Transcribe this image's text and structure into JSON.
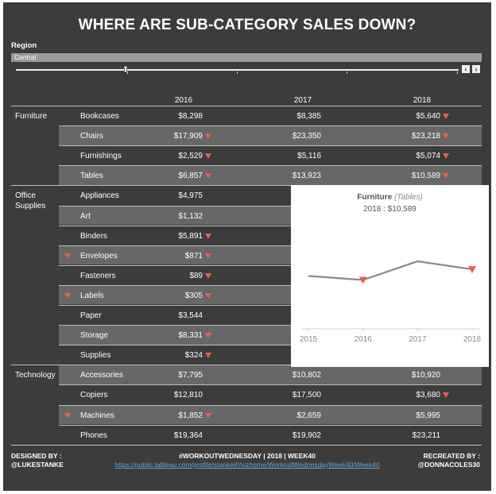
{
  "title": "WHERE ARE SUB-CATEGORY SALES DOWN?",
  "filter": {
    "label": "Region",
    "value": "Central",
    "prev_icon": "chevron-left-icon",
    "next_icon": "chevron-right-icon",
    "prev_glyph": "‹",
    "next_glyph": "›"
  },
  "years": [
    "2016",
    "2017",
    "2018"
  ],
  "down_color": "#e8604c",
  "categories": [
    {
      "name": "Furniture",
      "rows": [
        {
          "sub": "Bookcases",
          "v": [
            "$8,298",
            "$8,385",
            "$5,640"
          ],
          "down": [
            false,
            false,
            true
          ],
          "band": false,
          "flag": false
        },
        {
          "sub": "Chairs",
          "v": [
            "$17,909",
            "$23,350",
            "$23,218"
          ],
          "down": [
            true,
            false,
            true
          ],
          "band": true,
          "flag": false
        },
        {
          "sub": "Furnishings",
          "v": [
            "$2,529",
            "$5,116",
            "$5,074"
          ],
          "down": [
            true,
            false,
            true
          ],
          "band": false,
          "flag": false
        },
        {
          "sub": "Tables",
          "v": [
            "$6,857",
            "$13,923",
            "$10,589"
          ],
          "down": [
            true,
            false,
            true
          ],
          "band": true,
          "flag": false
        }
      ]
    },
    {
      "name": "Office Supplies",
      "name_lines": [
        "Office",
        "Supplies"
      ],
      "rows": [
        {
          "sub": "Appliances",
          "v": [
            "$4,975",
            "",
            ""
          ],
          "down": [
            false,
            false,
            false
          ],
          "band": false,
          "flag": false
        },
        {
          "sub": "Art",
          "v": [
            "$1,132",
            "",
            ""
          ],
          "down": [
            false,
            false,
            false
          ],
          "band": true,
          "flag": false
        },
        {
          "sub": "Binders",
          "v": [
            "$5,891",
            "",
            ""
          ],
          "down": [
            true,
            false,
            false
          ],
          "band": false,
          "flag": false
        },
        {
          "sub": "Envelopes",
          "v": [
            "$871",
            "",
            ""
          ],
          "down": [
            true,
            false,
            false
          ],
          "band": true,
          "flag": true
        },
        {
          "sub": "Fasteners",
          "v": [
            "$89",
            "",
            ""
          ],
          "down": [
            true,
            false,
            false
          ],
          "band": false,
          "flag": false
        },
        {
          "sub": "Labels",
          "v": [
            "$305",
            "",
            ""
          ],
          "down": [
            true,
            false,
            false
          ],
          "band": true,
          "flag": true
        },
        {
          "sub": "Paper",
          "v": [
            "$3,544",
            "",
            ""
          ],
          "down": [
            false,
            false,
            false
          ],
          "band": false,
          "flag": false
        },
        {
          "sub": "Storage",
          "v": [
            "$8,331",
            "",
            ""
          ],
          "down": [
            true,
            false,
            false
          ],
          "band": true,
          "flag": false
        },
        {
          "sub": "Supplies",
          "v": [
            "$324",
            "",
            ""
          ],
          "down": [
            true,
            false,
            false
          ],
          "band": false,
          "flag": false
        }
      ]
    },
    {
      "name": "Technology",
      "rows": [
        {
          "sub": "Accessories",
          "v": [
            "$7,795",
            "$10,802",
            "$10,920"
          ],
          "down": [
            false,
            false,
            false
          ],
          "band": true,
          "flag": false
        },
        {
          "sub": "Copiers",
          "v": [
            "$12,810",
            "$17,500",
            "$3,680"
          ],
          "down": [
            false,
            false,
            true
          ],
          "band": false,
          "flag": false
        },
        {
          "sub": "Machines",
          "v": [
            "$1,852",
            "$2,659",
            "$5,995"
          ],
          "down": [
            true,
            false,
            false
          ],
          "band": true,
          "flag": true
        },
        {
          "sub": "Phones",
          "v": [
            "$19,364",
            "$19,902",
            "$23,211"
          ],
          "down": [
            false,
            false,
            false
          ],
          "band": false,
          "flag": false
        }
      ]
    }
  ],
  "tooltip": {
    "category": "Furniture",
    "subcategory": "(Tables)",
    "detail": "2018 : $10,589",
    "chart_data": {
      "type": "line",
      "x": [
        "2015",
        "2016",
        "2017",
        "2018"
      ],
      "values": [
        0.78,
        0.72,
        1.0,
        0.88
      ],
      "value_scale": "relative",
      "down_markers": [
        false,
        true,
        false,
        true
      ],
      "line_color": "#8a8a8a",
      "marker_color": "#e8604c"
    }
  },
  "footer": {
    "designed_label": "DESIGNED BY :",
    "designed_name": "@LUKESTANKE",
    "center_title": "#WORKOUTWEDNESDAY | 2018 | WEEK40",
    "link": "https://public.tableau.com/profile/stanke#!/vizhome/WorkoutWednesdayWeek40/Week40",
    "recreated_label": "RECREATED BY :",
    "recreated_name": "@DONNACOLES30"
  }
}
